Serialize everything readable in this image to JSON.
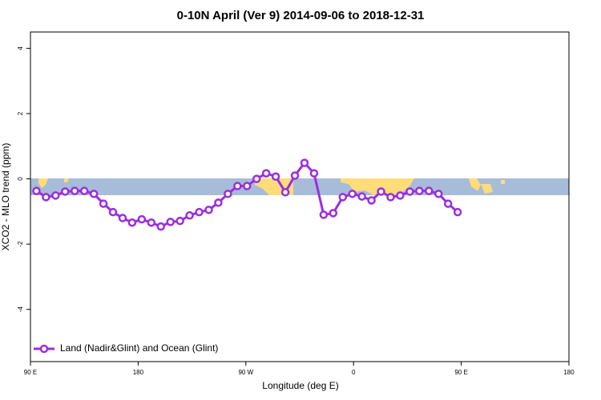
{
  "chart_data": {
    "type": "line",
    "title": "0-10N April (Ver 9)   2014-09-06 to 2018-12-31",
    "x_label": "Longitude (deg E)",
    "y_label": "XCO2 - MLO trend (ppm)",
    "xlim": [
      90,
      540
    ],
    "ylim": [
      -5.6,
      4.5
    ],
    "xticks": [
      {
        "value": 90,
        "label": "90 E"
      },
      180,
      {
        "value": 270,
        "label": "90 W"
      },
      {
        "value": 360,
        "label": "0"
      },
      {
        "value": 450,
        "label": "90 E"
      },
      {
        "value": 540,
        "label": "180"
      }
    ],
    "yticks": [
      -4,
      -2,
      0,
      2,
      4
    ],
    "legend": "bottom-left",
    "x": [
      95,
      103,
      111,
      119,
      127,
      135,
      143,
      151,
      159,
      167,
      175,
      183,
      191,
      199,
      207,
      215,
      223,
      231,
      239,
      247,
      255,
      263,
      271,
      279,
      287,
      295,
      303,
      311,
      319,
      327,
      335,
      343,
      351,
      359,
      367,
      375,
      383,
      391,
      399,
      407,
      415,
      423,
      431,
      439,
      447
    ],
    "series": [
      {
        "name": "Land (Nadir&Glint) and Ocean (Glint)",
        "color": "#9b2ee0",
        "values": [
          -0.37,
          -0.56,
          -0.51,
          -0.39,
          -0.37,
          -0.37,
          -0.46,
          -0.76,
          -1.02,
          -1.2,
          -1.34,
          -1.24,
          -1.34,
          -1.46,
          -1.32,
          -1.29,
          -1.12,
          -1.02,
          -0.95,
          -0.73,
          -0.46,
          -0.22,
          -0.22,
          0,
          0.17,
          0.07,
          -0.41,
          0.1,
          0.49,
          0.17,
          -1.1,
          -1.05,
          -0.56,
          -0.46,
          -0.54,
          -0.66,
          -0.39,
          -0.56,
          -0.51,
          -0.39,
          -0.37,
          -0.37,
          -0.46,
          -0.76,
          -1.02
        ]
      }
    ]
  }
}
